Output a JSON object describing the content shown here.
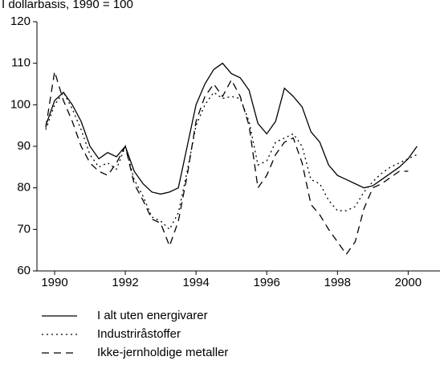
{
  "chart_data": {
    "type": "line",
    "title": "I dollarbasis, 1990 = 100",
    "x": [
      1989.75,
      1990,
      1990.25,
      1990.5,
      1990.75,
      1991,
      1991.25,
      1991.5,
      1991.75,
      1992,
      1992.25,
      1992.5,
      1992.75,
      1993,
      1993.25,
      1993.5,
      1993.75,
      1994,
      1994.25,
      1994.5,
      1994.75,
      1995,
      1995.25,
      1995.5,
      1995.75,
      1996,
      1996.25,
      1996.5,
      1996.75,
      1997,
      1997.25,
      1997.5,
      1997.75,
      1998,
      1998.25,
      1998.5,
      1998.75,
      1999,
      1999.25,
      1999.5,
      1999.75,
      2000,
      2000.25
    ],
    "series": [
      {
        "name": "I alt uten energivarer",
        "color": "#000000",
        "style": "solid",
        "values": [
          95,
          101,
          103,
          100,
          96,
          90,
          87,
          88.5,
          87.5,
          90,
          84,
          81,
          79,
          78.5,
          79,
          80,
          90,
          100,
          105,
          108.5,
          110,
          107.5,
          106.5,
          103.5,
          95.5,
          93,
          96,
          104,
          102,
          99.5,
          93.5,
          91,
          85.5,
          83,
          82,
          81,
          80,
          80.5,
          82,
          83.5,
          85,
          87,
          90
        ]
      },
      {
        "name": "Industriråstoffer",
        "color": "#000000",
        "style": "dotted",
        "values": [
          94,
          100,
          103,
          99,
          94,
          88,
          85,
          86,
          84.5,
          90,
          82,
          78,
          73,
          72,
          70,
          74,
          84,
          95,
          100,
          103,
          101.5,
          102,
          101.5,
          96,
          85.5,
          86.5,
          91,
          92,
          93,
          90,
          82,
          81,
          77,
          74.5,
          74.5,
          75.5,
          79,
          81.5,
          83.5,
          85,
          86,
          87,
          88
        ]
      },
      {
        "name": "Ikke-jernholdige metaller",
        "color": "#000000",
        "style": "dashed",
        "values": [
          94.5,
          108,
          101,
          96,
          90,
          86,
          84,
          83,
          86,
          90,
          81,
          77,
          72.5,
          71.5,
          66,
          72,
          83,
          96,
          102,
          105,
          102,
          106,
          102,
          95,
          80,
          83,
          88,
          91,
          92,
          86,
          76,
          73.5,
          70,
          67,
          64,
          67,
          75,
          80,
          81,
          82.5,
          84,
          84,
          null
        ]
      }
    ],
    "xlim": [
      1989.5,
      2000.9
    ],
    "xticks": [
      1990,
      1992,
      1994,
      1996,
      1998,
      2000
    ],
    "ylim": [
      60,
      120
    ],
    "yticks": [
      60,
      70,
      80,
      90,
      100,
      110,
      120
    ],
    "grid": false,
    "legend": "bottom"
  }
}
